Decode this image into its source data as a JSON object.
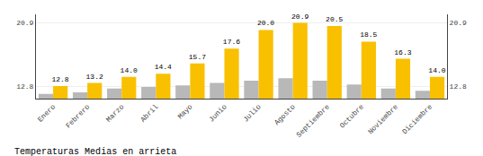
{
  "chart_data": {
    "type": "bar",
    "title": "Temperaturas Medias en arrieta",
    "categories": [
      "Enero",
      "Febrero",
      "Marzo",
      "Abril",
      "Mayo",
      "Junio",
      "Julio",
      "Agosto",
      "Septiembre",
      "Octubre",
      "Noviembre",
      "Diciembre"
    ],
    "series": [
      {
        "color": "#B8B8B8",
        "values": [
          11.8,
          12.0,
          12.5,
          12.7,
          12.9,
          13.2,
          13.5,
          13.8,
          13.5,
          13.0,
          12.5,
          12.2
        ]
      },
      {
        "color": "#F9C000",
        "values": [
          12.8,
          13.2,
          14.0,
          14.4,
          15.7,
          17.6,
          20.0,
          20.9,
          20.5,
          18.5,
          16.3,
          14.0
        ],
        "data_labels": true,
        "value_labels": [
          "12.8",
          "13.2",
          "14.0",
          "14.4",
          "15.7",
          "17.6",
          "20.0",
          "20.9",
          "20.5",
          "18.5",
          "16.3",
          "14.0"
        ]
      }
    ],
    "ylim": [
      11.2,
      22.0
    ],
    "yticks": [
      12.8,
      20.9
    ],
    "y2lim": [
      11.2,
      22.0
    ],
    "y2ticks": [
      12.8,
      20.9
    ],
    "grid": true
  }
}
